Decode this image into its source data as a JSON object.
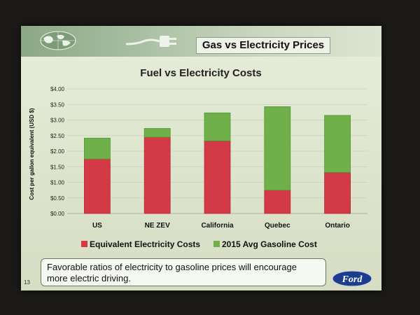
{
  "slide": {
    "title": "Gas vs Electricity Prices",
    "note": "Favorable ratios of electricity to gasoline prices will encourage more electric driving.",
    "page_number": "13",
    "logo_text": "Ford"
  },
  "colors": {
    "electricity": "#d43a45",
    "gasoline": "#6fb04a",
    "banner": "#8ba885"
  },
  "icons": [
    "globe-icon",
    "plug-icon",
    "ford-logo"
  ],
  "chart_data": {
    "type": "bar",
    "stacked": true,
    "title": "Fuel vs Electricity Costs",
    "ylabel": "Cost per gallon equivalent (USD $)",
    "xlabel": "",
    "ylim": [
      0,
      4
    ],
    "ytick_labels": [
      "$0.00",
      "$0.50",
      "$1.00",
      "$1.50",
      "$2.00",
      "$2.50",
      "$3.00",
      "$3.50",
      "$4.00"
    ],
    "categories": [
      "US",
      "NE ZEV",
      "California",
      "Quebec",
      "Ontario"
    ],
    "series": [
      {
        "name": "Equivalent Electricity Costs",
        "values": [
          1.75,
          2.45,
          2.33,
          0.75,
          1.32
        ]
      },
      {
        "name": "2015 Avg Gasoline Cost",
        "values": [
          0.67,
          0.28,
          0.9,
          2.68,
          1.83
        ]
      }
    ],
    "grid": true,
    "legend_position": "bottom"
  }
}
